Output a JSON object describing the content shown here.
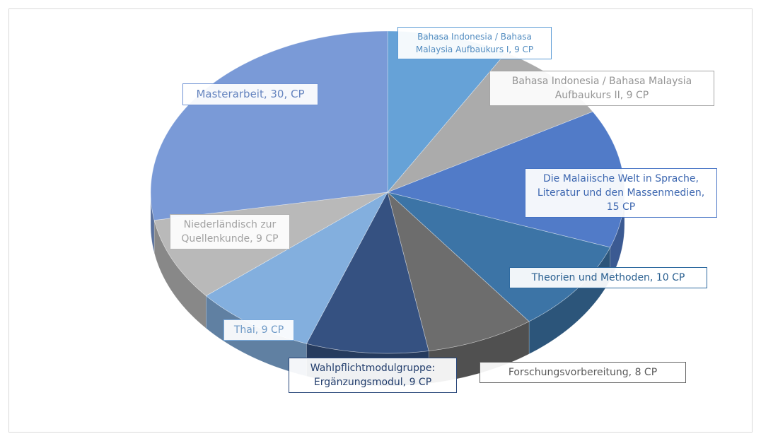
{
  "chart_data": {
    "type": "pie3d",
    "values": [
      9,
      9,
      15,
      10,
      8,
      9,
      9,
      9,
      30
    ],
    "value_labels": [
      "Bahasa Indonesia / Bahasa Malaysia Aufbaukurs I, 9 CP",
      "Bahasa Indonesia / Bahasa Malaysia Aufbaukurs II, 9 CP",
      "Die Malaiische Welt in Sprache, Literatur und den Massenmedien, 15 CP",
      "Theorien und Methoden, 10 CP",
      "Forschungsvorbereitung, 8 CP",
      "Wahlpflichtmodulgruppe: Ergänzungsmodul, 9 CP",
      "Thai, 9 CP",
      "Niederländisch zur Quellenkunde, 9 CP",
      "Masterarbeit, 30, CP"
    ],
    "colors": [
      "#5b9bd5",
      "#a5a5a5",
      "#4472c4",
      "#2e6aa0",
      "#636363",
      "#264478",
      "#7aaadc",
      "#b4b4b4",
      "#7093d4"
    ]
  }
}
